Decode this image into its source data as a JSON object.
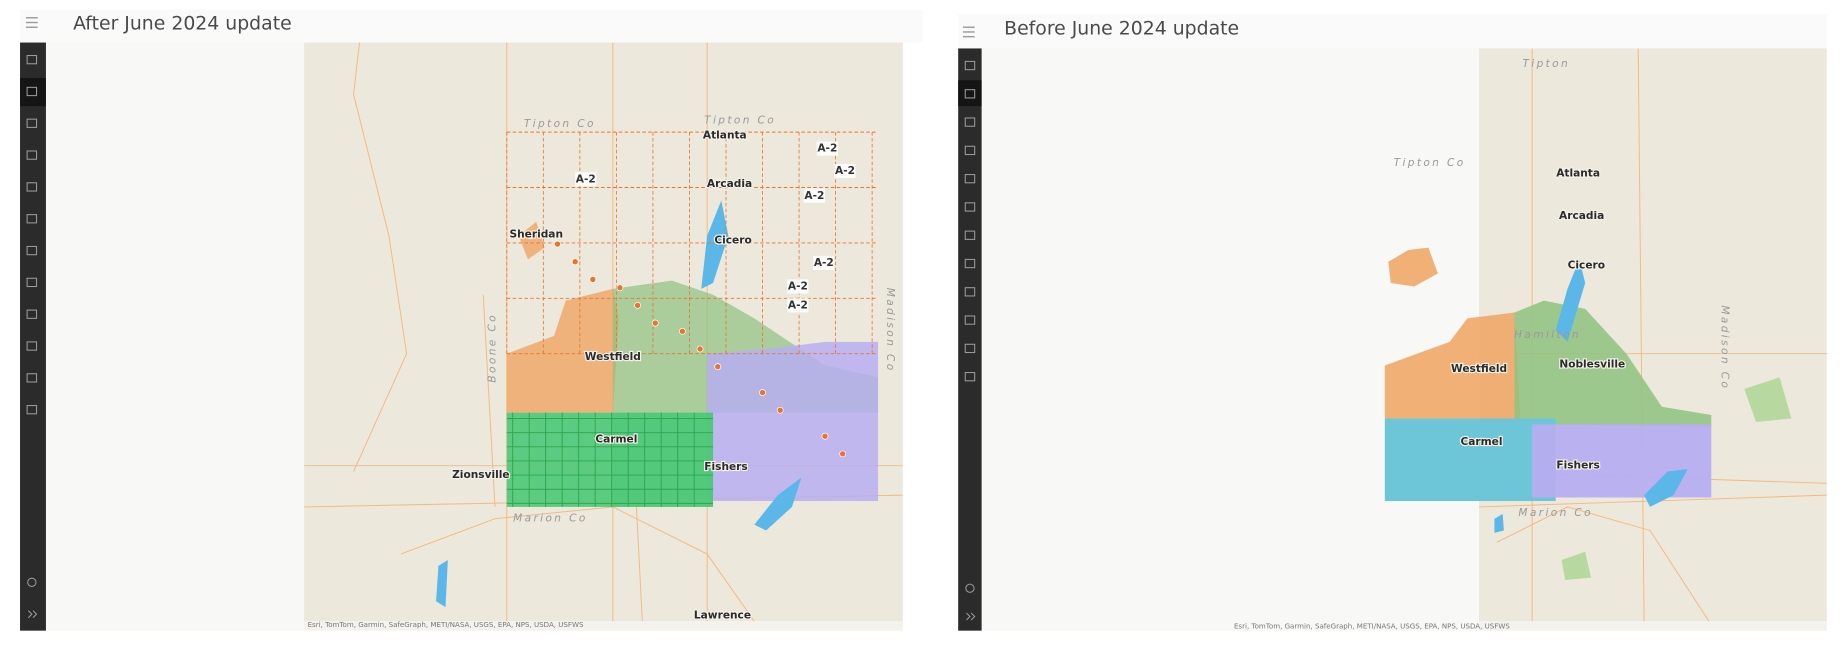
{
  "panels": [
    {
      "title": "After June 2024 update",
      "attribution": "Esri, TomTom, Garmin, SafeGraph, METI/NASA, USGS, EPA, NPS, USDA, USFWS",
      "labels": [
        "Tipton Co",
        "Tipton Co",
        "Atlanta",
        "Arcadia",
        "Cicero",
        "Sheridan",
        "Westfield",
        "Carmel",
        "Fishers",
        "Zionsville",
        "Marion Co",
        "Boone Co",
        "Madison Co",
        "Lawrence",
        "A-2",
        "A-2",
        "A-2",
        "A-2",
        "A-2",
        "A-2",
        "A-2"
      ]
    },
    {
      "title": "Before June 2024 update",
      "attribution": "Esri, TomTom, Garmin, SafeGraph, METI/NASA, USGS, EPA, NPS, USDA, USFWS",
      "labels": [
        "Tipton",
        "Tipton Co",
        "Atlanta",
        "Arcadia",
        "Cicero",
        "Hamilton",
        "Westfield",
        "Noblesville",
        "Carmel",
        "Fishers",
        "Marion Co",
        "Madison Co"
      ]
    }
  ]
}
